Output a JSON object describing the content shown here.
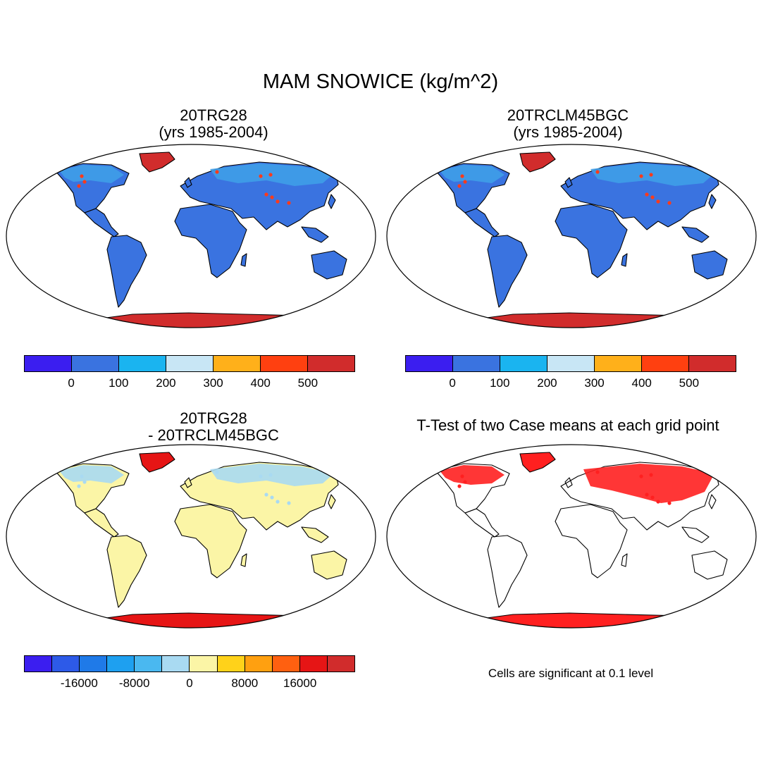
{
  "figure": {
    "title": "MAM SNOWICE (kg/m^2)"
  },
  "panels": [
    {
      "id": "p1",
      "title_line1": "20TRG28",
      "title_line2": "(yrs 1985-2004)",
      "land_color": "#3a73e0",
      "arctic_color": "#3f9fe8",
      "antarctic_color": "#d12c2c",
      "greenland_color": "#d12c2c",
      "scatter_color": "#ff3b1a"
    },
    {
      "id": "p2",
      "title_line1": "20TRCLM45BGC",
      "title_line2": "(yrs 1985-2004)",
      "land_color": "#3a73e0",
      "arctic_color": "#3f9fe8",
      "antarctic_color": "#d12c2c",
      "greenland_color": "#d12c2c",
      "scatter_color": "#ff3b1a"
    },
    {
      "id": "p3",
      "title_line1": "20TRG28",
      "title_line2": "- 20TRCLM45BGC",
      "land_color": "#fbf5a6",
      "arctic_color": "#a9daf2",
      "antarctic_color": "#e61515",
      "greenland_color": "#e61515",
      "scatter_color": "#a9daf2"
    },
    {
      "id": "p4",
      "title_line1": "T-Test of two Case means at each grid point",
      "title_line2": "",
      "land_color": "#ffffff",
      "arctic_color": "#ff2020",
      "antarctic_color": "#ff2020",
      "greenland_color": "#ff2020",
      "scatter_color": "#ff2020"
    }
  ],
  "colorbar_top": {
    "colors": [
      "#3b1ef0",
      "#3a73e0",
      "#1ab4f0",
      "#c8e6f5",
      "#ffb01a",
      "#ff4010",
      "#d12c2c"
    ],
    "ticks": [
      "0",
      "100",
      "200",
      "300",
      "400",
      "500"
    ]
  },
  "colorbar_bottom": {
    "colors": [
      "#3b1ef0",
      "#2d5ae8",
      "#1f7ae8",
      "#1ea0f0",
      "#4ab8f0",
      "#a9daf2",
      "#fbf5a6",
      "#ffd21a",
      "#ffa010",
      "#ff6010",
      "#e61515",
      "#d12c2c"
    ],
    "ticks": [
      "-16000",
      "-8000",
      "0",
      "8000",
      "16000"
    ]
  },
  "note": "Cells are significant at 0.1 level"
}
